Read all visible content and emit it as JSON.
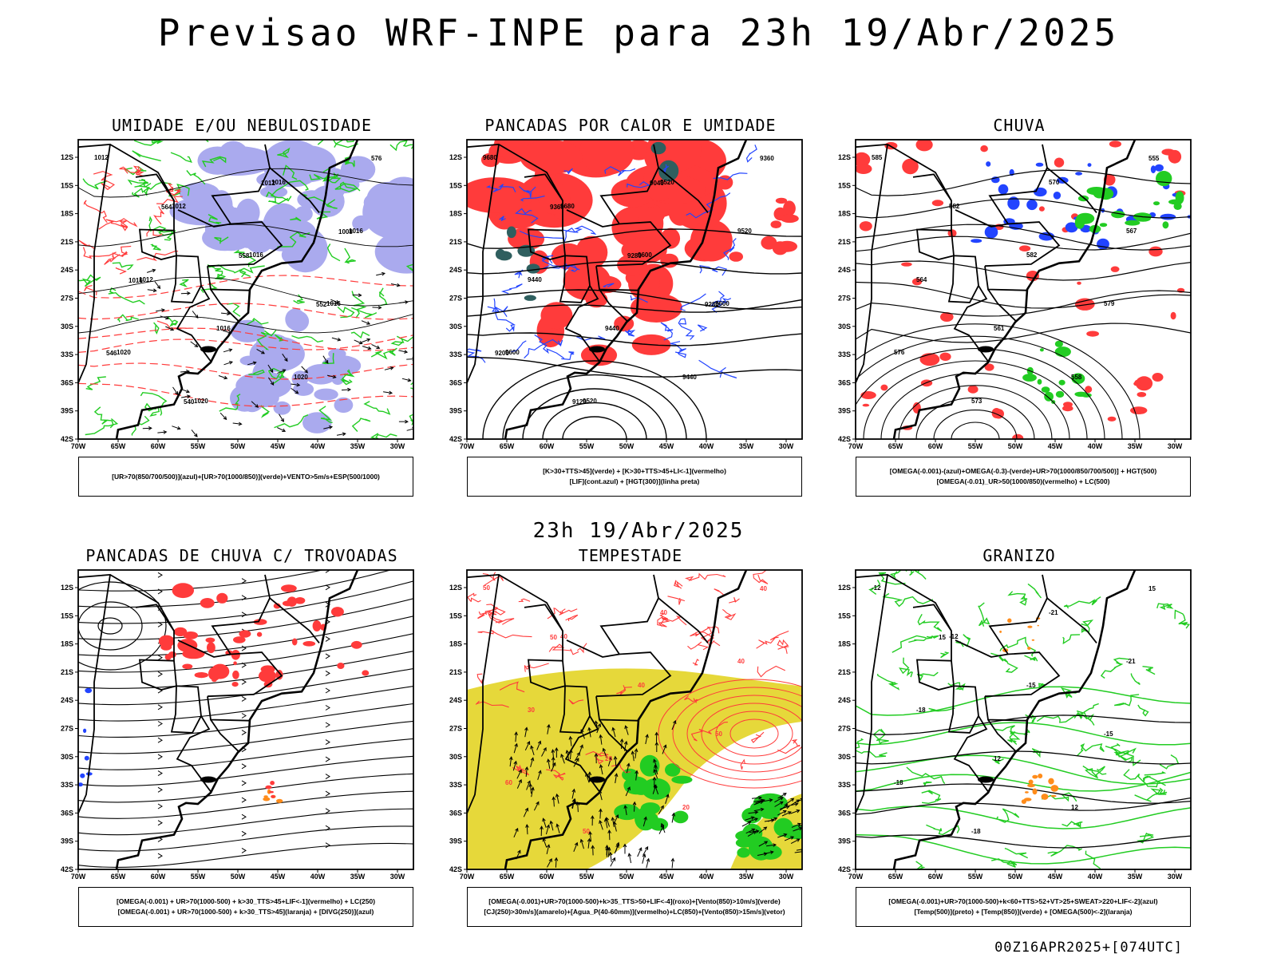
{
  "header": {
    "title": "Previsao WRF-INPE  para 23h 19/Abr/2025"
  },
  "middle_date": "23h 19/Abr/2025",
  "footer": {
    "run_code": "00Z16APR2025+[074UTC]"
  },
  "axes": {
    "lat_labels": [
      "12S",
      "15S",
      "18S",
      "21S",
      "24S",
      "27S",
      "30S",
      "33S",
      "36S",
      "39S",
      "42S"
    ],
    "lon_labels": [
      "70W",
      "65W",
      "60W",
      "55W",
      "50W",
      "45W",
      "40W",
      "35W",
      "30W"
    ]
  },
  "colors": {
    "green": "#22cc22",
    "blue": "#2244ff",
    "red": "#ff3b3b",
    "lavender": "#aaaaee",
    "teal": "#2f5f5f",
    "yellow": "#e6d83a",
    "orange": "#ff8c1a",
    "black": "#000000"
  },
  "panels": [
    {
      "id": "umidade",
      "title": "UMIDADE E/OU NEBULOSIDADE",
      "legend": [
        "[UR>70(850/700/500)](azul)+[UR>70(1000/850)](verde)+VENTO>5m/s+ESP(500/1000)"
      ],
      "contour_labels": [
        "1012",
        "1012",
        "1016",
        "1016",
        "1020",
        "1020",
        "1016",
        "1016",
        "1012",
        "1016",
        "1020",
        "576",
        "564",
        "558",
        "552",
        "546",
        "540",
        "1012",
        "1008",
        "1016"
      ]
    },
    {
      "id": "pancadas_calor",
      "title": "PANCADAS POR CALOR E UMIDADE",
      "legend": [
        "[K>30+TTS>45](verde) + [K>30+TTS>45+LI<-1](vermelho)",
        "[LIF](cont.azul) + [HGT(300)](linha preta)"
      ],
      "contour_labels": [
        "9680",
        "9680",
        "9600",
        "9600",
        "9600",
        "9520",
        "9520",
        "9520",
        "9440",
        "9440",
        "9440",
        "9360",
        "9360",
        "9280",
        "9280",
        "9200",
        "9120",
        "9040"
      ]
    },
    {
      "id": "chuva",
      "title": "CHUVA",
      "legend": [
        "[OMEGA(-0.001)-(azul)+OMEGA(-0.3)-(verde)+UR>70(1000/850/700/500)] + HGT(500)",
        "[OMEGA(-0.01)_UR>50(1000/850)(vermelho) + LC(500)"
      ],
      "contour_labels": [
        "585",
        "582",
        "582",
        "579",
        "576",
        "573",
        "570",
        "567",
        "564",
        "561",
        "558",
        "555"
      ]
    },
    {
      "id": "pancadas_trovoadas",
      "title": "PANCADAS DE CHUVA C/ TROVOADAS",
      "legend": [
        "[OMEGA(-0.001) + UR>70(1000-500) + k>30_TTS>45+LIF<-1](vermelho) + LC(250)",
        "[OMEGA(-0.001) + UR>70(1000-500) + k>30_TTS>45](laranja) + [DIVG(250)](azul)"
      ],
      "contour_labels": []
    },
    {
      "id": "tempestade",
      "title": "TEMPESTADE",
      "legend": [
        "[OMEGA(-0.001)+UR>70(1000-500)+k>35_TTS>50+LIF<-4](roxo)+[Vento(850)>10m/s](verde)",
        "[CJ(250)>30m/s](amarelo)+[Agua_P(40-60mm)](vermelho)+LC(850)+[Vento(850)>15m/s](vetor)"
      ],
      "contour_labels": [
        "50",
        "40",
        "40",
        "50",
        "60",
        "50",
        "40",
        "40",
        "30",
        "20",
        "20",
        "40",
        "50"
      ]
    },
    {
      "id": "granizo",
      "title": "GRANIZO",
      "legend": [
        "[OMEGA(-0.001)+UR>70(1000-500)+k<60+TTS>52+VT>25+SWEAT>220+LIF<-2](azul)",
        "[Temp(500)](preto) + [Temp(850)](verde) + [OMEGA(500)<-2](laranja)"
      ],
      "contour_labels": [
        "-12",
        "-12",
        "-15",
        "-15",
        "-18",
        "-18",
        "-21",
        "-21",
        "-18",
        "12",
        "12",
        "15",
        "15"
      ]
    }
  ]
}
